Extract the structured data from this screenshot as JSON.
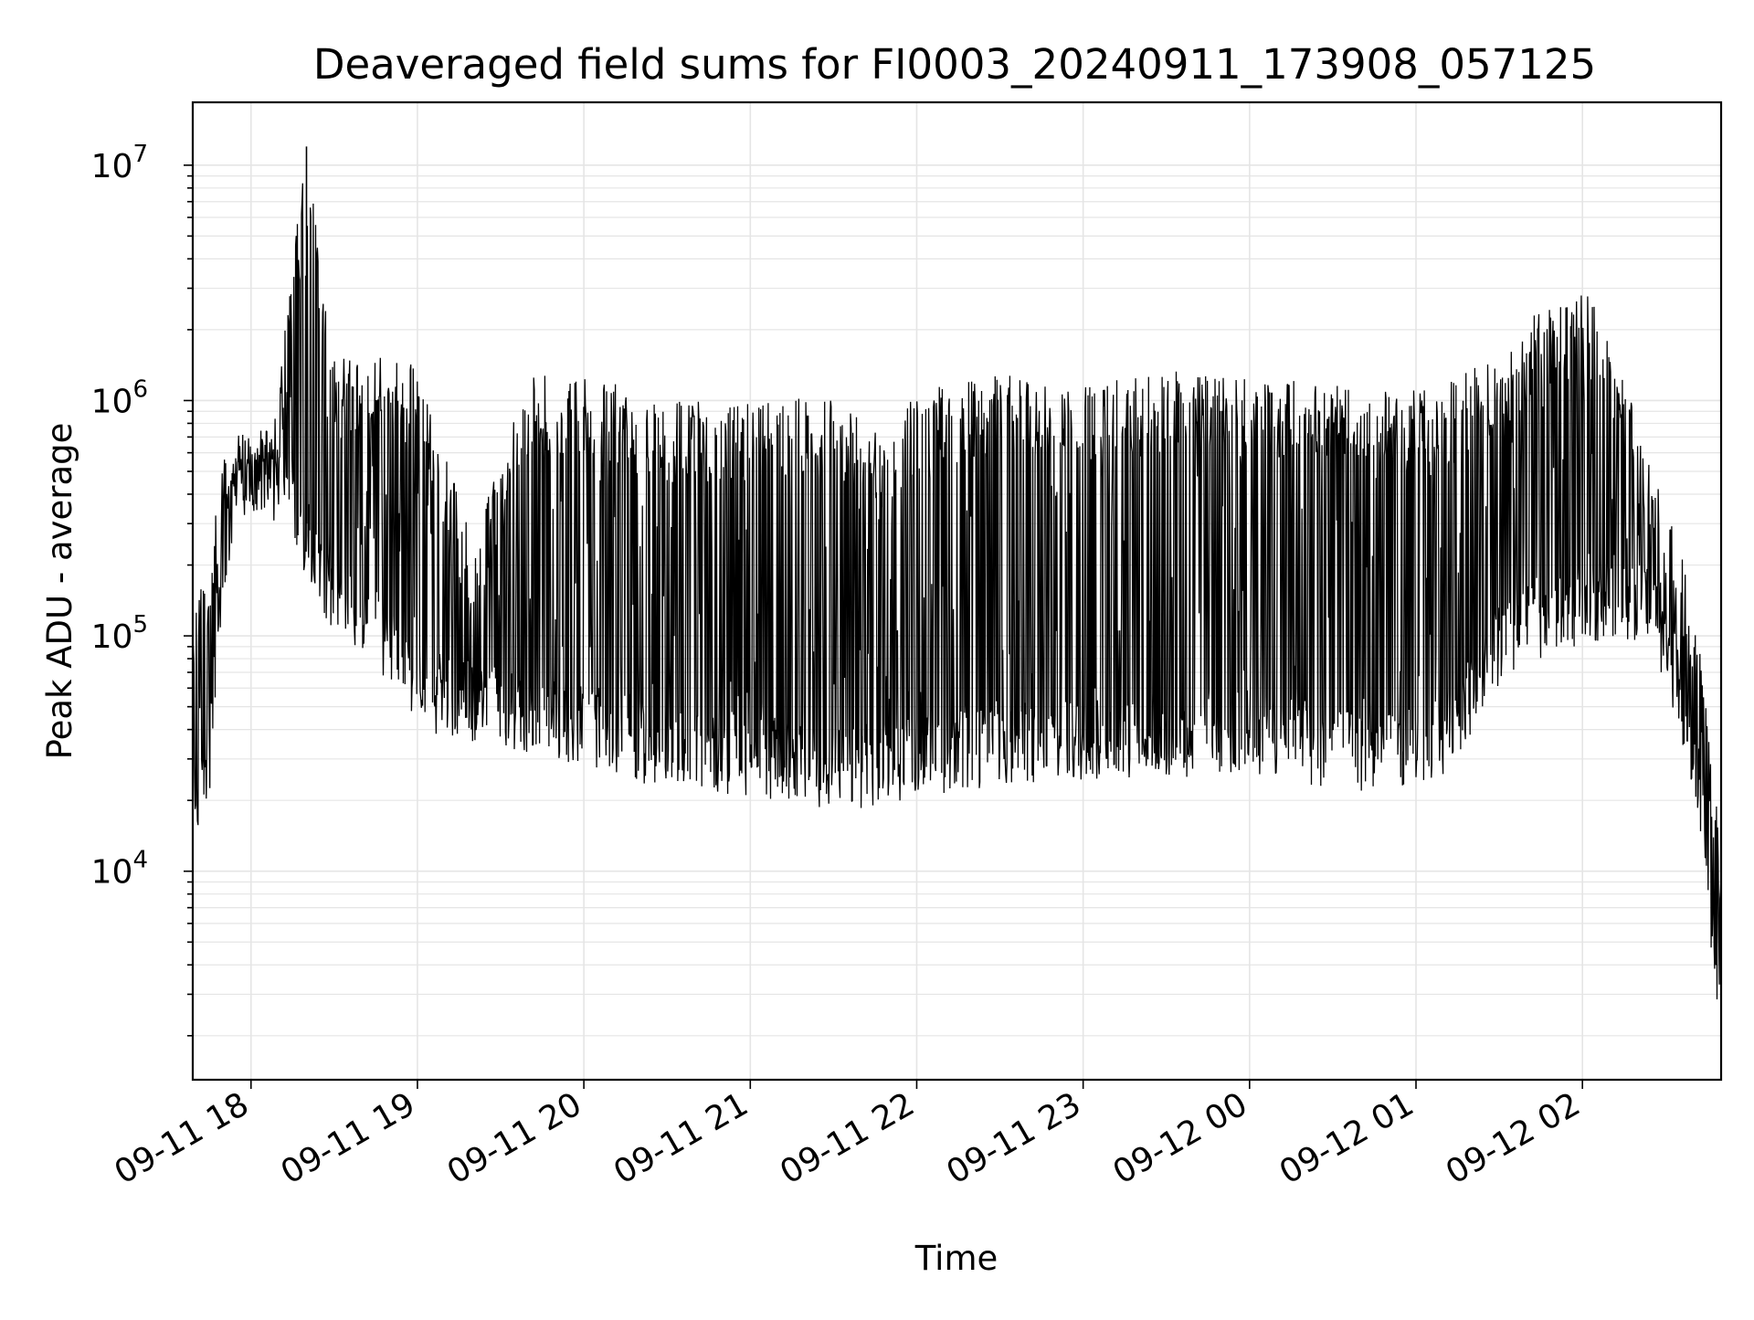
{
  "chart_data": {
    "type": "line",
    "title": "Deaveraged field sums for FI0003_20240911_173908_057125",
    "xlabel": "Time",
    "ylabel": "Peak ADU - average",
    "yscale": "log",
    "xlim": [
      "2024-09-11 17:39",
      "2024-09-12 02:50"
    ],
    "ylim": [
      1300,
      18500000
    ],
    "grid": true,
    "line_color": "#000000",
    "grid_color": "#e5e5e5",
    "x_ticks": [
      "09-11 18",
      "09-11 19",
      "09-11 20",
      "09-11 21",
      "09-11 22",
      "09-11 23",
      "09-12 00",
      "09-12 01",
      "09-12 02"
    ],
    "y_ticks": [
      {
        "base": "10",
        "exp": "4",
        "value": 10000
      },
      {
        "base": "10",
        "exp": "5",
        "value": 100000
      },
      {
        "base": "10",
        "exp": "6",
        "value": 1000000
      },
      {
        "base": "10",
        "exp": "7",
        "value": 10000000
      }
    ],
    "series": [
      {
        "envelope": true,
        "points": [
          {
            "x": "2024-09-11 17:39",
            "low": 12000,
            "high": 120000
          },
          {
            "x": "2024-09-11 17:45",
            "low": 20000,
            "high": 250000
          },
          {
            "x": "2024-09-11 17:50",
            "low": 130000,
            "high": 650000
          },
          {
            "x": "2024-09-11 17:55",
            "low": 300000,
            "high": 900000
          },
          {
            "x": "2024-09-11 18:00",
            "low": 350000,
            "high": 700000
          },
          {
            "x": "2024-09-11 18:10",
            "low": 300000,
            "high": 1200000
          },
          {
            "x": "2024-09-11 18:20",
            "low": 180000,
            "high": 12000000
          },
          {
            "x": "2024-09-11 18:30",
            "low": 100000,
            "high": 1600000
          },
          {
            "x": "2024-09-11 18:45",
            "low": 70000,
            "high": 1600000
          },
          {
            "x": "2024-09-11 19:00",
            "low": 40000,
            "high": 1400000
          },
          {
            "x": "2024-09-11 19:20",
            "low": 35000,
            "high": 250000
          },
          {
            "x": "2024-09-11 19:40",
            "low": 32000,
            "high": 1300000
          },
          {
            "x": "2024-09-11 20:00",
            "low": 28000,
            "high": 1300000
          },
          {
            "x": "2024-09-11 20:30",
            "low": 22000,
            "high": 1000000
          },
          {
            "x": "2024-09-11 21:00",
            "low": 21000,
            "high": 1050000
          },
          {
            "x": "2024-09-11 21:30",
            "low": 18000,
            "high": 1050000
          },
          {
            "x": "2024-09-11 21:50",
            "low": 19000,
            "high": 700000
          },
          {
            "x": "2024-09-11 22:00",
            "low": 21000,
            "high": 1100000
          },
          {
            "x": "2024-09-11 22:30",
            "low": 22000,
            "high": 1300000
          },
          {
            "x": "2024-09-11 23:00",
            "low": 24000,
            "high": 1150000
          },
          {
            "x": "2024-09-11 23:30",
            "low": 24000,
            "high": 1350000
          },
          {
            "x": "2024-09-12 00:00",
            "low": 26000,
            "high": 1250000
          },
          {
            "x": "2024-09-12 00:30",
            "low": 22000,
            "high": 1200000
          },
          {
            "x": "2024-09-12 00:50",
            "low": 21000,
            "high": 1100000
          },
          {
            "x": "2024-09-12 01:10",
            "low": 25000,
            "high": 1150000
          },
          {
            "x": "2024-09-12 01:30",
            "low": 60000,
            "high": 1600000
          },
          {
            "x": "2024-09-12 01:45",
            "low": 80000,
            "high": 2500000
          },
          {
            "x": "2024-09-12 02:00",
            "low": 90000,
            "high": 3000000
          },
          {
            "x": "2024-09-12 02:10",
            "low": 100000,
            "high": 2000000
          },
          {
            "x": "2024-09-12 02:25",
            "low": 90000,
            "high": 500000
          },
          {
            "x": "2024-09-12 02:35",
            "low": 40000,
            "high": 250000
          },
          {
            "x": "2024-09-12 02:42",
            "low": 15000,
            "high": 100000
          },
          {
            "x": "2024-09-12 02:47",
            "low": 4000,
            "high": 30000
          },
          {
            "x": "2024-09-12 02:50",
            "low": 2000,
            "high": 12000
          }
        ]
      }
    ]
  }
}
